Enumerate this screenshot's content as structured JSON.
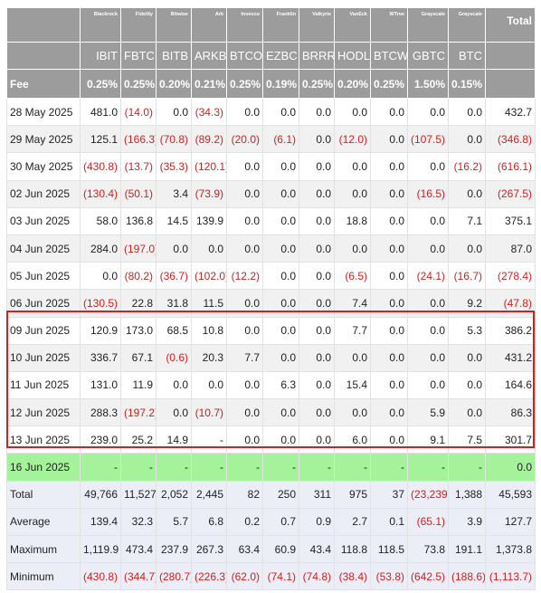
{
  "header": {
    "issuers": [
      "Blackrock",
      "Fidelity",
      "Bitwise",
      "Ark",
      "Invesco",
      "Franklin",
      "Valkyrie",
      "VanEck",
      "WTree",
      "Grayscale",
      "Grayscale"
    ],
    "total": "Total",
    "tickers": [
      "IBIT",
      "FBTC",
      "BITB",
      "ARKB",
      "BTCO",
      "EZBC",
      "BRRR",
      "HODL",
      "BTCW",
      "GBTC",
      "BTC"
    ]
  },
  "fee": {
    "label": "Fee",
    "values": [
      "0.25%",
      "0.25%",
      "0.20%",
      "0.21%",
      "0.25%",
      "0.19%",
      "0.25%",
      "0.20%",
      "0.25%",
      "1.50%",
      "0.15%"
    ]
  },
  "rows": [
    [
      "28 May 2025",
      "481.0",
      "(14.0)",
      "0.0",
      "(34.3)",
      "0.0",
      "0.0",
      "0.0",
      "0.0",
      "0.0",
      "0.0",
      "0.0",
      "432.7"
    ],
    [
      "29 May 2025",
      "125.1",
      "(166.3)",
      "(70.8)",
      "(89.2)",
      "(20.0)",
      "(6.1)",
      "0.0",
      "(12.0)",
      "0.0",
      "(107.5)",
      "0.0",
      "(346.8)"
    ],
    [
      "30 May 2025",
      "(430.8)",
      "(13.7)",
      "(35.3)",
      "(120.1)",
      "0.0",
      "0.0",
      "0.0",
      "0.0",
      "0.0",
      "0.0",
      "(16.2)",
      "(616.1)"
    ],
    [
      "02 Jun 2025",
      "(130.4)",
      "(50.1)",
      "3.4",
      "(73.9)",
      "0.0",
      "0.0",
      "0.0",
      "0.0",
      "0.0",
      "(16.5)",
      "0.0",
      "(267.5)"
    ],
    [
      "03 Jun 2025",
      "58.0",
      "136.8",
      "14.5",
      "139.9",
      "0.0",
      "0.0",
      "0.0",
      "18.8",
      "0.0",
      "0.0",
      "7.1",
      "375.1"
    ],
    [
      "04 Jun 2025",
      "284.0",
      "(197.0)",
      "0.0",
      "0.0",
      "0.0",
      "0.0",
      "0.0",
      "0.0",
      "0.0",
      "0.0",
      "0.0",
      "87.0"
    ],
    [
      "05 Jun 2025",
      "0.0",
      "(80.2)",
      "(36.7)",
      "(102.0)",
      "(12.2)",
      "0.0",
      "0.0",
      "(6.5)",
      "0.0",
      "(24.1)",
      "(16.7)",
      "(278.4)"
    ],
    [
      "06 Jun 2025",
      "(130.5)",
      "22.8",
      "31.8",
      "11.5",
      "0.0",
      "0.0",
      "0.0",
      "7.4",
      "0.0",
      "0.0",
      "9.2",
      "(47.8)"
    ],
    [
      "09 Jun 2025",
      "120.9",
      "173.0",
      "68.5",
      "10.8",
      "0.0",
      "0.0",
      "0.0",
      "7.7",
      "0.0",
      "0.0",
      "5.3",
      "386.2"
    ],
    [
      "10 Jun 2025",
      "336.7",
      "67.1",
      "(0.6)",
      "20.3",
      "7.7",
      "0.0",
      "0.0",
      "0.0",
      "0.0",
      "0.0",
      "0.0",
      "431.2"
    ],
    [
      "11 Jun 2025",
      "131.0",
      "11.9",
      "0.0",
      "0.0",
      "0.0",
      "6.3",
      "0.0",
      "15.4",
      "0.0",
      "0.0",
      "0.0",
      "164.6"
    ],
    [
      "12 Jun 2025",
      "288.3",
      "(197.2)",
      "0.0",
      "(10.7)",
      "0.0",
      "0.0",
      "0.0",
      "0.0",
      "0.0",
      "5.9",
      "0.0",
      "86.3"
    ],
    [
      "13 Jun 2025",
      "239.0",
      "25.2",
      "14.9",
      "-",
      "0.0",
      "0.0",
      "0.0",
      "6.0",
      "0.0",
      "9.1",
      "7.5",
      "301.7"
    ],
    [
      "16 Jun 2025",
      "-",
      "-",
      "-",
      "-",
      "-",
      "-",
      "-",
      "-",
      "-",
      "-",
      "-",
      "0.0"
    ],
    [
      "Total",
      "49,766",
      "11,527",
      "2,052",
      "2,445",
      "82",
      "250",
      "311",
      "975",
      "37",
      "(23,239)",
      "1,388",
      "45,593"
    ],
    [
      "Average",
      "139.4",
      "32.3",
      "5.7",
      "6.8",
      "0.2",
      "0.7",
      "0.9",
      "2.7",
      "0.1",
      "(65.1)",
      "3.9",
      "127.7"
    ],
    [
      "Maximum",
      "1,119.9",
      "473.4",
      "237.9",
      "267.3",
      "63.4",
      "60.9",
      "43.4",
      "118.8",
      "118.5",
      "73.8",
      "191.1",
      "1,373.8"
    ],
    [
      "Minimum",
      "(430.8)",
      "(344.7)",
      "(280.7)",
      "(226.3)",
      "(62.0)",
      "(74.1)",
      "(74.8)",
      "(38.4)",
      "(53.8)",
      "(642.5)",
      "(188.6)",
      "(1,113.7)"
    ]
  ]
}
